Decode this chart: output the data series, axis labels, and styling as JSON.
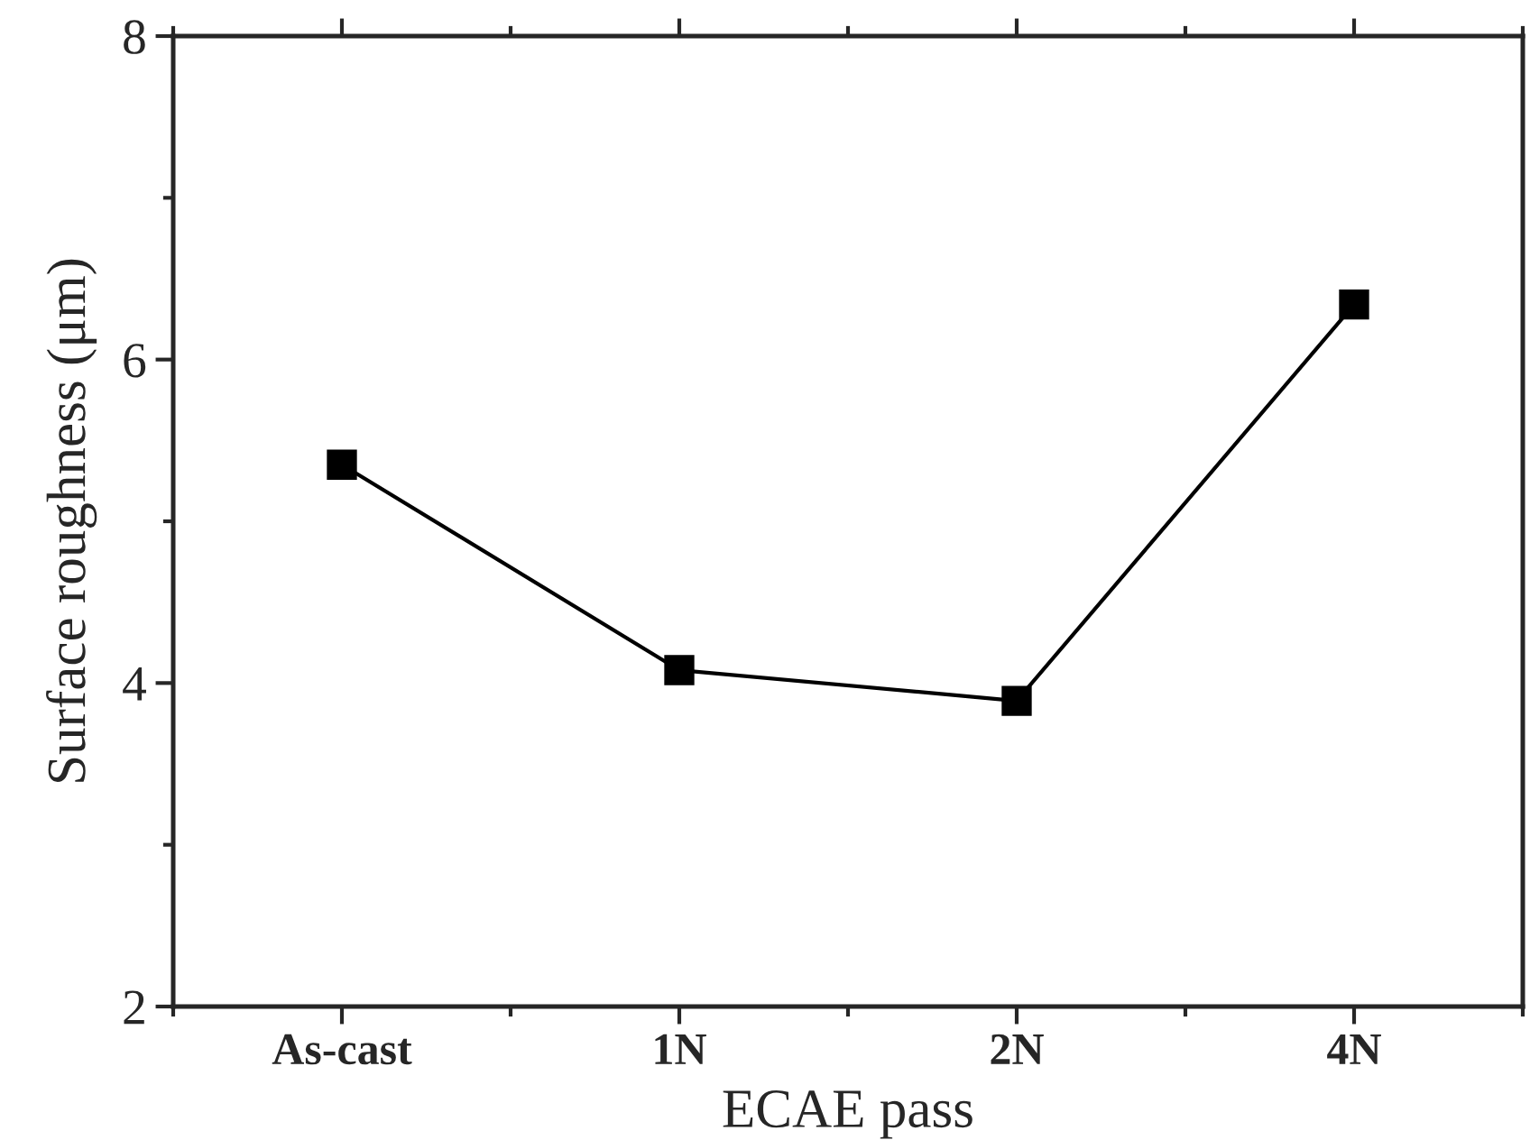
{
  "chart_data": {
    "type": "line",
    "xlabel": "ECAE pass",
    "ylabel": "Surface roughness (μm)",
    "categories": [
      "As-cast",
      "1N",
      "2N",
      "4N"
    ],
    "series": [
      {
        "color": "#000000",
        "values": [
          5.35,
          4.08,
          3.89,
          6.34
        ]
      }
    ],
    "ylim": [
      2,
      8
    ],
    "yticks": [
      2,
      4,
      6,
      8
    ],
    "marker": "square",
    "line_style": "solid",
    "grid": false,
    "legend": false
  }
}
